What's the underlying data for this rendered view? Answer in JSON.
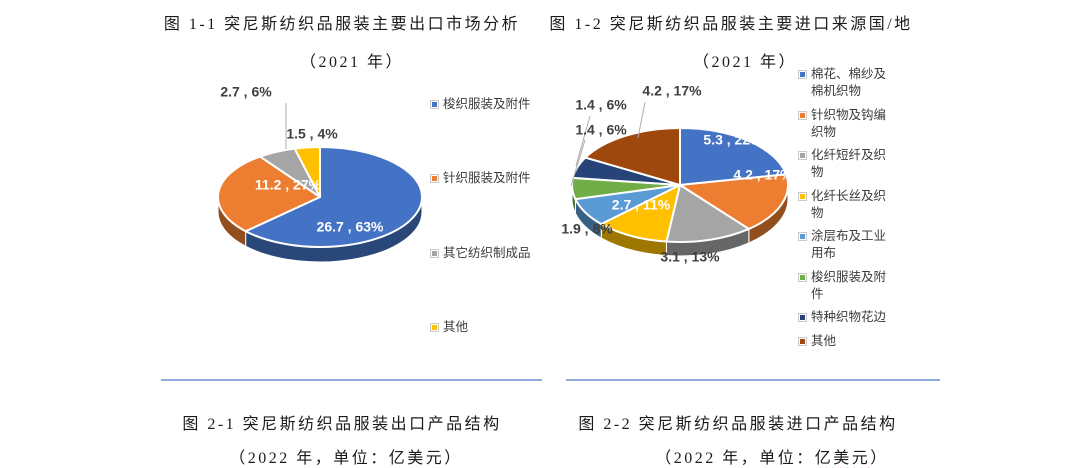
{
  "colors": {
    "divider": "#8FAADC",
    "leader_line": "#ADADAD",
    "label_inside": "#FFFFFF",
    "label_outside": "#3F3F3F",
    "spellcheck_underline": "#E23B2E"
  },
  "chart_data": [
    {
      "type": "pie",
      "style": "3d-pie",
      "title": "图 1-1 突尼斯纺织品服装主要出口市场分析",
      "subtitle": "（2021 年）",
      "legend_position": "right",
      "start_angle_deg": -90,
      "direction": "clockwise",
      "label_format": "value , percent%",
      "slices": [
        {
          "name": "梭织服装及附件",
          "value": 26.7,
          "percent": 63,
          "color": "#4472C4",
          "label": "26.7 , 63%"
        },
        {
          "name": "针织服装及附件",
          "value": 11.2,
          "percent": 27,
          "color": "#ED7D31",
          "label": "11.2 , 27%"
        },
        {
          "name": "其它纺织制成品",
          "value": 2.7,
          "percent": 6,
          "color": "#A5A5A5",
          "label": "2.7 , 6%"
        },
        {
          "name": "其他",
          "value": 1.5,
          "percent": 4,
          "color": "#FFC000",
          "label": "1.5 , 4%"
        }
      ]
    },
    {
      "type": "pie",
      "style": "3d-pie",
      "title": "图 1-2 突尼斯纺织品服装主要进口来源国/地",
      "subtitle": "（2021 年）",
      "legend_position": "right",
      "start_angle_deg": -90,
      "direction": "clockwise",
      "label_format": "value , percent%",
      "slices": [
        {
          "name": "棉花、棉纱及棉机织物",
          "value": 5.3,
          "percent": 22,
          "color": "#4472C4",
          "label": "5.3 , 22%"
        },
        {
          "name": "针织物及钩编织物",
          "value": 4.2,
          "percent": 17,
          "color": "#ED7D31",
          "label": "4.2 , 17%"
        },
        {
          "name": "化纤短纤及织物",
          "value": 3.1,
          "percent": 13,
          "color": "#A5A5A5",
          "label": "3.1 , 13%"
        },
        {
          "name": "化纤长丝及织物",
          "value": 2.7,
          "percent": 11,
          "color": "#FFC000",
          "label": "2.7 , 11%"
        },
        {
          "name": "涂层布及工业用布",
          "value": 1.9,
          "percent": 8,
          "color": "#5B9BD5",
          "label": "1.9 , 8%"
        },
        {
          "name": "梭织服装及附件",
          "value": 1.4,
          "percent": 6,
          "color": "#70AD47",
          "label": "1.4 , 6%"
        },
        {
          "name": "特种织物花边",
          "value": 1.4,
          "percent": 6,
          "color": "#264478",
          "label": "1.4 , 6%"
        },
        {
          "name": "其他",
          "value": 4.2,
          "percent": 17,
          "color": "#9E480E",
          "label": "4.2 , 17%"
        }
      ]
    }
  ],
  "captions": {
    "fig21": {
      "line1": "图 2-1 突尼斯纺织品服装出口产品结构",
      "line2": "（2022 年，单位：亿美元）"
    },
    "fig22": {
      "line1": "图 2-2 突尼斯纺织品服装进口产品结构",
      "line2_prefix": "（2022 年，单位：",
      "line2_wavy": "亿美元",
      "line2_suffix": "）"
    }
  }
}
